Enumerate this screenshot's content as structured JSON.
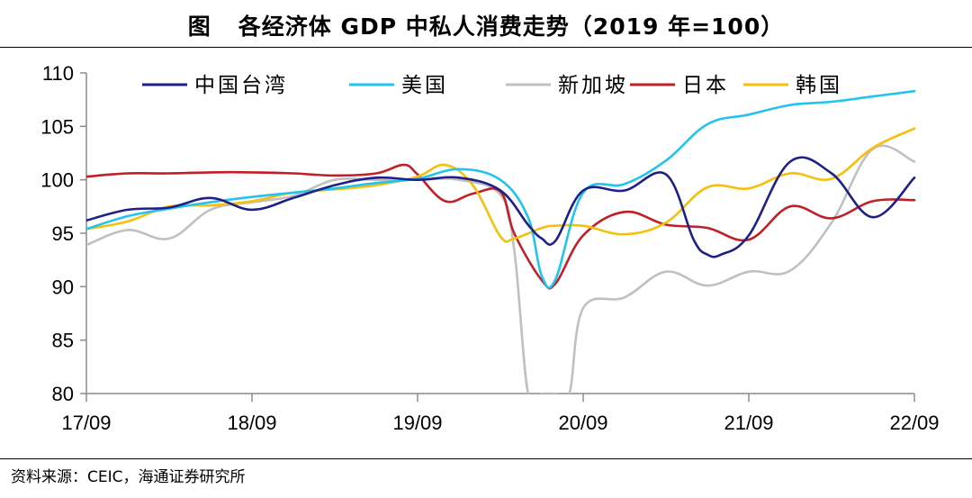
{
  "header": {
    "figure_label": "图",
    "title": "各经济体 GDP 中私人消费走势（2019 年=100）"
  },
  "footer": {
    "source": "资料来源：CEIC，海通证券研究所"
  },
  "chart_data": {
    "type": "line",
    "title": "各经济体 GDP 中私人消费走势（2019 年=100）",
    "xlabel": "",
    "ylabel": "",
    "ylim": [
      80,
      110
    ],
    "y_ticks": [
      "80",
      "85",
      "90",
      "95",
      "100",
      "105",
      "110"
    ],
    "x_ticks": [
      "17/09",
      "18/09",
      "19/09",
      "20/09",
      "21/09",
      "22/09"
    ],
    "x_tick_positions": [
      0,
      12,
      24,
      36,
      48,
      60
    ],
    "legend_position": "top",
    "grid": false,
    "series": [
      {
        "name": "中国台湾",
        "color": "#1f1f8a",
        "x": [
          0,
          3,
          6,
          9,
          12,
          15,
          18,
          21,
          24,
          27,
          30,
          32,
          33,
          34,
          36,
          39,
          42,
          44,
          45,
          46,
          48,
          51,
          54,
          57,
          60
        ],
        "values": [
          96.2,
          97.2,
          97.4,
          98.3,
          97.2,
          98.3,
          99.5,
          100.2,
          100.0,
          100.2,
          99.0,
          95.8,
          94.5,
          94.3,
          99.0,
          99.0,
          100.5,
          94.4,
          93.0,
          93.0,
          94.8,
          101.7,
          100.6,
          96.5,
          100.2
        ]
      },
      {
        "name": "美国",
        "color": "#22c4ee",
        "x": [
          0,
          3,
          6,
          9,
          12,
          15,
          18,
          21,
          24,
          27,
          30,
          32,
          33,
          34,
          36,
          39,
          42,
          45,
          48,
          51,
          54,
          57,
          60
        ],
        "values": [
          95.4,
          96.6,
          97.3,
          97.9,
          98.4,
          98.8,
          99.2,
          99.7,
          100.1,
          101.0,
          100.0,
          96.5,
          91.0,
          90.7,
          98.8,
          99.6,
          101.8,
          105.2,
          106.1,
          107.0,
          107.3,
          107.8,
          108.3
        ]
      },
      {
        "name": "新加坡",
        "color": "#c0c0c0",
        "x": [
          0,
          3,
          6,
          9,
          12,
          15,
          18,
          21,
          24,
          27,
          30,
          31,
          32,
          33,
          34,
          35,
          36,
          39,
          42,
          45,
          48,
          51,
          54,
          57,
          60
        ],
        "values": [
          93.9,
          95.3,
          94.5,
          97.2,
          97.9,
          98.5,
          100.0,
          100.0,
          100.0,
          100.0,
          98.6,
          93.5,
          80.0,
          80.0,
          80.0,
          80.0,
          88.0,
          89.0,
          91.4,
          90.1,
          91.4,
          91.5,
          96.0,
          102.9,
          101.7
        ]
      },
      {
        "name": "日本",
        "color": "#c01f26",
        "x": [
          0,
          3,
          6,
          9,
          12,
          15,
          18,
          21,
          23,
          24,
          26,
          28,
          30,
          31,
          33,
          34,
          36,
          39,
          42,
          45,
          48,
          51,
          54,
          57,
          60
        ],
        "values": [
          100.3,
          100.6,
          100.6,
          100.7,
          100.7,
          100.6,
          100.4,
          100.6,
          101.4,
          100.5,
          98.0,
          98.7,
          98.9,
          95.0,
          90.6,
          90.3,
          94.8,
          97.0,
          95.8,
          95.5,
          94.4,
          97.5,
          96.4,
          98.0,
          98.1
        ]
      },
      {
        "name": "韩国",
        "color": "#f6bf0e",
        "x": [
          0,
          3,
          6,
          9,
          12,
          15,
          18,
          21,
          24,
          26,
          28,
          30,
          31,
          33,
          34,
          36,
          39,
          42,
          45,
          48,
          51,
          54,
          57,
          60
        ],
        "values": [
          95.4,
          96.1,
          97.5,
          97.6,
          98.0,
          98.8,
          99.1,
          99.5,
          100.3,
          101.4,
          99.5,
          94.7,
          94.5,
          95.5,
          95.7,
          95.7,
          94.9,
          96.0,
          99.3,
          99.2,
          100.6,
          100.1,
          103.0,
          104.8
        ]
      }
    ]
  }
}
